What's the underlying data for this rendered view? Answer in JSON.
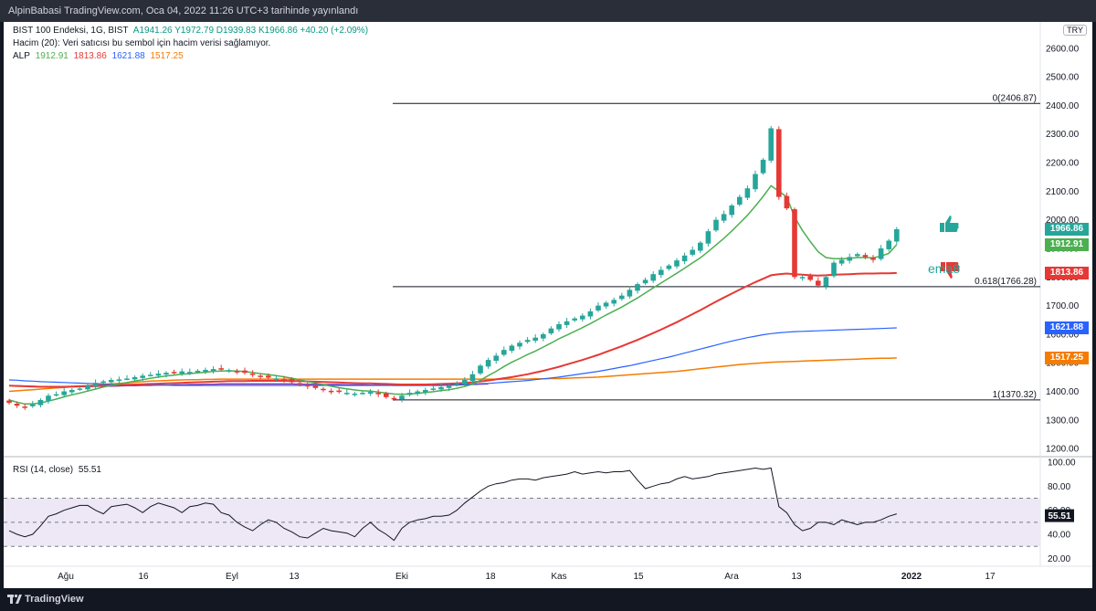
{
  "header": {
    "published": "AlpinBabasi TradingView.com, Oca 04, 2022 11:26 UTC+3 tarihinde yayınlandı"
  },
  "legend": {
    "symbol": "BIST 100 Endeksi, 1G, BIST",
    "ohlc": "A1941.26  Y1972.79  D1939.83  K1966.86  +40.20 (+2.09%)",
    "volume_note": "Hacim (20): Veri satıcısı bu sembol için hacim verisi sağlamıyor.",
    "alp_label": "ALP",
    "alp_values": [
      "1912.91",
      "1813.86",
      "1621.88",
      "1517.25"
    ]
  },
  "currency": "TRY",
  "annotation": {
    "ema_text": "ema8"
  },
  "rsi": {
    "title": "RSI (14, close)",
    "value": "55.51"
  },
  "footer": {
    "brand": "TradingView"
  },
  "colors": {
    "up": "#26a69a",
    "up_candle": "#26a69a",
    "down_candle": "#e53935",
    "ema8": "#4caf50",
    "red_ma": "#e53935",
    "blue_ma": "#2962ff",
    "orange_ma": "#f57c00",
    "purple_ma": "#7b1fa2",
    "rsi_line": "#131722",
    "rsi_band": "#ede7f6"
  },
  "chart_data": {
    "type": "candlestick",
    "price_axis": {
      "ticks": [
        "2600.00",
        "2500.00",
        "2400.00",
        "2300.00",
        "2200.00",
        "2100.00",
        "2000.00",
        "1900.00",
        "1800.00",
        "1700.00",
        "1600.00",
        "1500.00",
        "1400.00",
        "1300.00",
        "1200.00"
      ],
      "tick_values": [
        2600,
        2500,
        2400,
        2300,
        2200,
        2100,
        2000,
        1900,
        1800,
        1700,
        1600,
        1500,
        1400,
        1300,
        1200
      ],
      "range": [
        1175,
        2660
      ]
    },
    "time_axis": {
      "ticks": [
        "Ağu",
        "16",
        "Eyl",
        "13",
        "Eki",
        "18",
        "Kas",
        "15",
        "Ara",
        "13",
        "2022",
        "17"
      ]
    },
    "fib_levels": [
      {
        "label": "0(2406.87)",
        "value": 2406.87
      },
      {
        "label": "0.618(1766.28)",
        "value": 1766.28
      },
      {
        "label": "1(1370.32)",
        "value": 1370.32
      }
    ],
    "price_tags": [
      {
        "text": "1966.86",
        "value": 1966.86,
        "color": "#26a69a"
      },
      {
        "text": "1912.91",
        "value": 1912.91,
        "color": "#4caf50"
      },
      {
        "text": "1813.86",
        "value": 1813.86,
        "color": "#e53935"
      },
      {
        "text": "1621.88",
        "value": 1621.88,
        "color": "#2962ff"
      },
      {
        "text": "1517.25",
        "value": 1517.25,
        "color": "#f57c00"
      }
    ],
    "close": [
      1360,
      1350,
      1345,
      1355,
      1370,
      1385,
      1390,
      1400,
      1405,
      1410,
      1420,
      1430,
      1435,
      1440,
      1442,
      1445,
      1450,
      1455,
      1458,
      1462,
      1465,
      1465,
      1470,
      1468,
      1472,
      1475,
      1478,
      1476,
      1474,
      1470,
      1465,
      1458,
      1452,
      1448,
      1445,
      1440,
      1432,
      1425,
      1418,
      1412,
      1405,
      1400,
      1398,
      1395,
      1392,
      1395,
      1398,
      1390,
      1380,
      1375,
      1385,
      1395,
      1400,
      1405,
      1410,
      1415,
      1420,
      1428,
      1440,
      1460,
      1490,
      1510,
      1525,
      1545,
      1560,
      1570,
      1580,
      1588,
      1600,
      1620,
      1635,
      1645,
      1655,
      1665,
      1680,
      1700,
      1710,
      1720,
      1735,
      1755,
      1775,
      1790,
      1810,
      1825,
      1840,
      1858,
      1875,
      1895,
      1920,
      1960,
      2000,
      2020,
      2050,
      2080,
      2110,
      2160,
      2210,
      2320,
      2080,
      2040,
      1800,
      1800,
      1790,
      1770,
      1800,
      1850,
      1860,
      1870,
      1880,
      1870,
      1860,
      1900,
      1927,
      1967
    ],
    "ema8": [
      1370,
      1362,
      1356,
      1356,
      1360,
      1366,
      1373,
      1381,
      1388,
      1394,
      1401,
      1408,
      1415,
      1421,
      1426,
      1431,
      1436,
      1441,
      1446,
      1450,
      1454,
      1457,
      1460,
      1462,
      1465,
      1467,
      1470,
      1471,
      1472,
      1471,
      1469,
      1466,
      1462,
      1459,
      1455,
      1451,
      1446,
      1440,
      1435,
      1429,
      1424,
      1418,
      1413,
      1409,
      1405,
      1402,
      1401,
      1398,
      1394,
      1391,
      1390,
      1391,
      1393,
      1396,
      1399,
      1403,
      1406,
      1411,
      1417,
      1425,
      1439,
      1455,
      1470,
      1487,
      1502,
      1515,
      1529,
      1541,
      1555,
      1569,
      1584,
      1597,
      1610,
      1623,
      1637,
      1652,
      1667,
      1681,
      1695,
      1711,
      1727,
      1744,
      1762,
      1779,
      1796,
      1813,
      1831,
      1849,
      1867,
      1889,
      1912,
      1935,
      1961,
      1988,
      2016,
      2048,
      2082,
      2119,
      2100,
      2080,
      2009,
      1963,
      1924,
      1888,
      1868,
      1864,
      1864,
      1865,
      1868,
      1868,
      1867,
      1873,
      1883,
      1913
    ],
    "red_ma": [
      1420,
      1419,
      1418,
      1417,
      1416,
      1416,
      1416,
      1416,
      1417,
      1418,
      1418,
      1419,
      1420,
      1421,
      1422,
      1423,
      1424,
      1425,
      1426,
      1427,
      1428,
      1429,
      1430,
      1431,
      1432,
      1433,
      1434,
      1435,
      1436,
      1436,
      1436,
      1437,
      1437,
      1437,
      1437,
      1437,
      1436,
      1436,
      1435,
      1434,
      1433,
      1432,
      1431,
      1430,
      1429,
      1428,
      1428,
      1427,
      1426,
      1425,
      1424,
      1424,
      1424,
      1424,
      1425,
      1426,
      1427,
      1428,
      1430,
      1432,
      1435,
      1438,
      1442,
      1446,
      1450,
      1455,
      1460,
      1466,
      1472,
      1479,
      1486,
      1494,
      1502,
      1510,
      1519,
      1528,
      1538,
      1548,
      1558,
      1569,
      1580,
      1592,
      1604,
      1616,
      1629,
      1642,
      1656,
      1670,
      1684,
      1699,
      1714,
      1728,
      1742,
      1756,
      1769,
      1782,
      1794,
      1806,
      1810,
      1812,
      1810,
      1808,
      1806,
      1805,
      1806,
      1808,
      1809,
      1810,
      1811,
      1812,
      1812,
      1813,
      1813,
      1814
    ],
    "blue_ma": [
      1440,
      1439,
      1437,
      1436,
      1434,
      1433,
      1432,
      1431,
      1430,
      1429,
      1428,
      1427,
      1426,
      1425,
      1424,
      1424,
      1423,
      1423,
      1422,
      1422,
      1422,
      1421,
      1421,
      1421,
      1421,
      1421,
      1421,
      1421,
      1421,
      1421,
      1421,
      1421,
      1421,
      1421,
      1421,
      1421,
      1421,
      1421,
      1421,
      1421,
      1421,
      1421,
      1421,
      1421,
      1421,
      1421,
      1421,
      1421,
      1421,
      1421,
      1421,
      1421,
      1421,
      1421,
      1422,
      1422,
      1423,
      1424,
      1425,
      1426,
      1427,
      1428,
      1430,
      1432,
      1434,
      1436,
      1438,
      1441,
      1444,
      1447,
      1450,
      1454,
      1458,
      1462,
      1466,
      1470,
      1475,
      1480,
      1485,
      1490,
      1496,
      1502,
      1508,
      1514,
      1520,
      1527,
      1534,
      1541,
      1548,
      1555,
      1562,
      1569,
      1576,
      1582,
      1588,
      1593,
      1598,
      1602,
      1605,
      1607,
      1609,
      1610,
      1611,
      1612,
      1613,
      1614,
      1615,
      1616,
      1617,
      1618,
      1619,
      1620,
      1621,
      1622
    ],
    "orange_ma": [
      1400,
      1402,
      1404,
      1406,
      1408,
      1410,
      1412,
      1414,
      1416,
      1418,
      1420,
      1422,
      1424,
      1426,
      1428,
      1430,
      1432,
      1434,
      1436,
      1437,
      1438,
      1439,
      1440,
      1441,
      1441,
      1442,
      1442,
      1443,
      1443,
      1443,
      1443,
      1443,
      1443,
      1443,
      1443,
      1443,
      1443,
      1443,
      1443,
      1443,
      1443,
      1443,
      1443,
      1443,
      1443,
      1443,
      1443,
      1443,
      1443,
      1443,
      1443,
      1443,
      1443,
      1443,
      1443,
      1443,
      1443,
      1443,
      1443,
      1443,
      1443,
      1443,
      1443,
      1443,
      1443,
      1443,
      1443,
      1444,
      1444,
      1445,
      1445,
      1446,
      1447,
      1448,
      1449,
      1450,
      1452,
      1454,
      1456,
      1458,
      1460,
      1462,
      1464,
      1466,
      1468,
      1470,
      1473,
      1476,
      1479,
      1482,
      1485,
      1488,
      1491,
      1494,
      1496,
      1498,
      1500,
      1502,
      1503,
      1504,
      1505,
      1506,
      1507,
      1508,
      1509,
      1510,
      1511,
      1512,
      1513,
      1514,
      1515,
      1516,
      1516,
      1517
    ],
    "purple_ma": [
      1420,
      1420,
      1419,
      1418,
      1417,
      1417,
      1416,
      1416,
      1416,
      1416,
      1417,
      1417,
      1418,
      1418,
      1419,
      1420,
      1420,
      1421,
      1421,
      1422,
      1422,
      1423,
      1423,
      1424,
      1424,
      1425,
      1425,
      1426,
      1426,
      1426,
      1426,
      1426,
      1426,
      1426,
      1426,
      1426,
      1426,
      1425,
      1425,
      1425,
      1424,
      1424,
      1424,
      1423,
      1423,
      1423,
      1422,
      1422,
      1422,
      1421,
      1421,
      1421,
      1421,
      1421,
      1421,
      1421,
      1422,
      1422,
      1423,
      1424,
      1425,
      1426
    ],
    "rsi_axis": {
      "ticks": [
        "100.00",
        "80.00",
        "60.00",
        "40.00",
        "20.00"
      ],
      "tick_values": [
        100,
        80,
        60,
        40,
        20
      ],
      "range": [
        15,
        103
      ],
      "bands": [
        70,
        50,
        30
      ]
    },
    "rsi": [
      43,
      40,
      38,
      40,
      47,
      55,
      57,
      60,
      62,
      64,
      64,
      60,
      57,
      63,
      64,
      65,
      62,
      58,
      63,
      66,
      64,
      62,
      58,
      63,
      64,
      66,
      65,
      58,
      56,
      50,
      46,
      43,
      48,
      52,
      50,
      45,
      42,
      38,
      37,
      41,
      45,
      43,
      42,
      41,
      38,
      45,
      50,
      44,
      40,
      35,
      45,
      50,
      52,
      53,
      55,
      55,
      56,
      60,
      66,
      71,
      76,
      80,
      82,
      83,
      85,
      86,
      86,
      85,
      87,
      88,
      89,
      90,
      92,
      90,
      91,
      92,
      91,
      92,
      92,
      93,
      85,
      78,
      80,
      82,
      83,
      86,
      88,
      86,
      87,
      88,
      90,
      91,
      92,
      93,
      94,
      95,
      94,
      95,
      63,
      58,
      48,
      43,
      45,
      50,
      50,
      48,
      52,
      50,
      48,
      50,
      50,
      52,
      55,
      57
    ]
  }
}
